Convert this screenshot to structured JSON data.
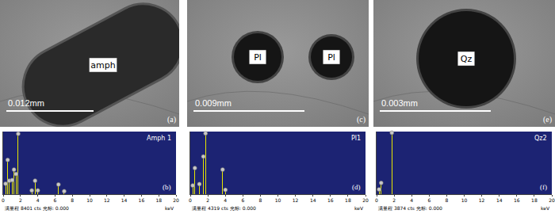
{
  "micrographs": [
    {
      "panel": "(a)",
      "scale_text": "0.012mm",
      "grains": [
        "amph"
      ]
    },
    {
      "panel": "(c)",
      "scale_text": "0.009mm",
      "grains": [
        "Pl",
        "Pl"
      ]
    },
    {
      "panel": "(e)",
      "scale_text": "0.003mm",
      "grains": [
        "Qz"
      ]
    }
  ],
  "chart_data": [
    {
      "type": "bar",
      "title": "Amph 1",
      "panel": "(b)",
      "x_label": "keV",
      "status_text": "满量程 8401 cts 光标: 0.000",
      "x": [
        0.28,
        0.52,
        0.7,
        1.04,
        1.25,
        1.49,
        1.74,
        3.31,
        3.69,
        4.01,
        6.4,
        7.06
      ],
      "values": [
        1400,
        4600,
        1800,
        1900,
        3300,
        2700,
        8100,
        500,
        1800,
        500,
        1300,
        400
      ],
      "color": "#e6e600",
      "marker": "circle",
      "xlim": [
        0,
        20
      ],
      "xticks": [
        0,
        2,
        4,
        6,
        8,
        10,
        12,
        14,
        16,
        18,
        20
      ],
      "ylim": [
        0,
        8401
      ],
      "grid": false,
      "tick_labels": "x"
    },
    {
      "type": "bar",
      "title": "Pl1",
      "panel": "(d)",
      "x_label": "keV",
      "status_text": "满量程 4319 cts 光标: 0.000",
      "x": [
        0.28,
        0.52,
        1.04,
        1.49,
        1.74,
        3.69,
        4.01
      ],
      "values": [
        600,
        1800,
        700,
        2600,
        4200,
        1700,
        300
      ],
      "color": "#e6e600",
      "marker": "circle",
      "xlim": [
        0,
        20
      ],
      "xticks": [
        0,
        2,
        4,
        6,
        8,
        10,
        12,
        14,
        16,
        18,
        20
      ],
      "ylim": [
        0,
        4319
      ],
      "grid": false,
      "tick_labels": "x"
    },
    {
      "type": "bar",
      "title": "Qz2",
      "panel": "(f)",
      "x_label": "keV",
      "status_text": "满量程 3874 cts 光标: 0.000",
      "x": [
        0.28,
        0.52,
        1.74
      ],
      "values": [
        300,
        700,
        3800
      ],
      "color": "#e6e600",
      "marker": "circle",
      "xlim": [
        0,
        20
      ],
      "xticks": [
        0,
        2,
        4,
        6,
        8,
        10,
        12,
        14,
        16,
        18,
        20
      ],
      "ylim": [
        0,
        3874
      ],
      "grid": false,
      "tick_labels": "x"
    }
  ]
}
